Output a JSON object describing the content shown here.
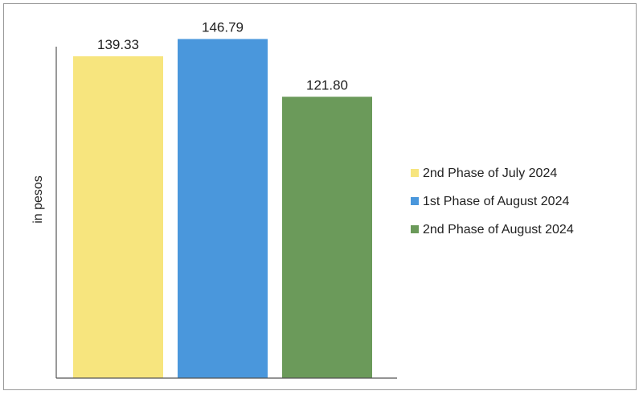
{
  "chart_data": {
    "type": "bar",
    "title": "",
    "xlabel": "",
    "ylabel": "in pesos",
    "ylim": [
      0,
      150
    ],
    "grid": false,
    "legend_position": "right",
    "categories": [
      "2nd Phase of July 2024",
      "1st Phase of August 2024",
      "2nd Phase of August 2024"
    ],
    "values": [
      139.33,
      146.79,
      121.8
    ],
    "value_labels": [
      "139.33",
      "146.79",
      "121.80"
    ],
    "colors": [
      "#f7e57e",
      "#4a97dc",
      "#6b9a5a"
    ]
  }
}
